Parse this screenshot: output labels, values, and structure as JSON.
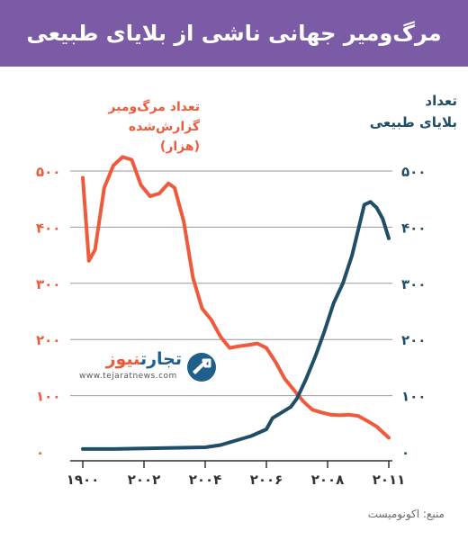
{
  "header": {
    "title": "مرگ‌ومیر جهانی ناشی از بلایای طبیعی"
  },
  "logo": {
    "name_main": "تجارت",
    "name_accent": "نیوز",
    "url": "www.tejaratnews.com"
  },
  "source": "منبع: اکونومیست",
  "colors": {
    "deaths": "#ef5a3c",
    "disasters": "#1f4e66",
    "header": "#7b5aa6",
    "grid": "#999999"
  },
  "chart_data": {
    "type": "line",
    "left_axis_title": [
      "تعداد مرگ‌ومیر گزارش‌شده",
      "(هزار)"
    ],
    "right_axis_title": [
      "تعداد",
      "بلایای طبیعی"
    ],
    "x_ticks": [
      "۱۹۰۰",
      "۲۰۰۲",
      "۲۰۰۴",
      "۲۰۰۶",
      "۲۰۰۸",
      "۲۰۱۱"
    ],
    "y_ticks": [
      "۰",
      "۱۰۰",
      "۲۰۰",
      "۳۰۰",
      "۴۰۰",
      "۵۰۰"
    ],
    "ylim": [
      0,
      500
    ],
    "xlim": [
      0,
      1
    ],
    "series": [
      {
        "name": "تعداد مرگ‌ومیر گزارش‌شده",
        "axis": "left",
        "points": [
          [
            0.0,
            488
          ],
          [
            0.02,
            340
          ],
          [
            0.04,
            360
          ],
          [
            0.07,
            470
          ],
          [
            0.1,
            510
          ],
          [
            0.13,
            525
          ],
          [
            0.16,
            520
          ],
          [
            0.19,
            475
          ],
          [
            0.22,
            455
          ],
          [
            0.25,
            460
          ],
          [
            0.28,
            478
          ],
          [
            0.3,
            470
          ],
          [
            0.33,
            410
          ],
          [
            0.36,
            310
          ],
          [
            0.39,
            255
          ],
          [
            0.42,
            235
          ],
          [
            0.45,
            205
          ],
          [
            0.48,
            185
          ],
          [
            0.51,
            188
          ],
          [
            0.54,
            190
          ],
          [
            0.57,
            193
          ],
          [
            0.6,
            185
          ],
          [
            0.63,
            160
          ],
          [
            0.66,
            130
          ],
          [
            0.69,
            110
          ],
          [
            0.72,
            90
          ],
          [
            0.75,
            75
          ],
          [
            0.78,
            70
          ],
          [
            0.81,
            66
          ],
          [
            0.84,
            65
          ],
          [
            0.87,
            66
          ],
          [
            0.9,
            64
          ],
          [
            0.93,
            55
          ],
          [
            0.96,
            45
          ],
          [
            1.0,
            25
          ]
        ]
      },
      {
        "name": "تعداد بلایای طبیعی",
        "axis": "right",
        "points": [
          [
            0.0,
            5
          ],
          [
            0.1,
            5
          ],
          [
            0.2,
            6
          ],
          [
            0.3,
            7
          ],
          [
            0.4,
            8
          ],
          [
            0.45,
            12
          ],
          [
            0.5,
            20
          ],
          [
            0.55,
            28
          ],
          [
            0.6,
            40
          ],
          [
            0.62,
            60
          ],
          [
            0.65,
            70
          ],
          [
            0.68,
            80
          ],
          [
            0.7,
            95
          ],
          [
            0.73,
            130
          ],
          [
            0.76,
            170
          ],
          [
            0.79,
            215
          ],
          [
            0.82,
            265
          ],
          [
            0.85,
            300
          ],
          [
            0.88,
            350
          ],
          [
            0.9,
            395
          ],
          [
            0.92,
            440
          ],
          [
            0.94,
            445
          ],
          [
            0.96,
            435
          ],
          [
            0.98,
            415
          ],
          [
            1.0,
            380
          ]
        ]
      }
    ]
  }
}
